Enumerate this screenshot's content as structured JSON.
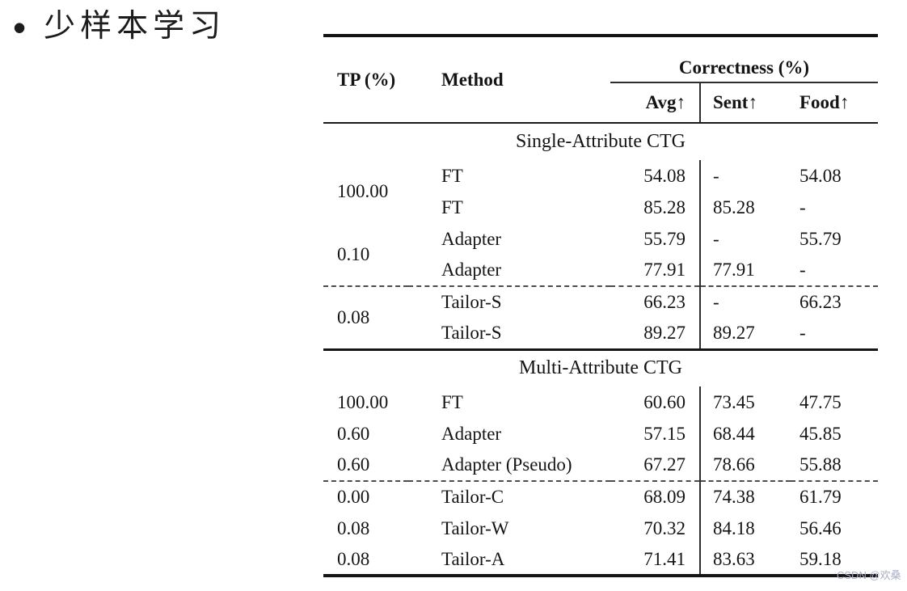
{
  "page": {
    "bullet": "•",
    "title": "少样本学习",
    "watermark": "CSDN @欢桑"
  },
  "table": {
    "header": {
      "tp": "TP (%)",
      "method": "Method",
      "correctness": "Correctness (%)",
      "subcols": [
        "Avg↑",
        "Sent↑",
        "Food↑"
      ]
    },
    "sections": [
      {
        "title": "Single-Attribute CTG",
        "rows": [
          {
            "tp": "100.00",
            "method": "FT",
            "avg": "54.08",
            "sent": "-",
            "food": "54.08"
          },
          {
            "tp": "",
            "method": "FT",
            "avg": "85.28",
            "sent": "85.28",
            "food": "-"
          },
          {
            "tp": "0.10",
            "method": "Adapter",
            "avg": "55.79",
            "sent": "-",
            "food": "55.79"
          },
          {
            "tp": "",
            "method": "Adapter",
            "avg": "77.91",
            "sent": "77.91",
            "food": "-"
          },
          {
            "tp": "0.08",
            "method": "Tailor-S",
            "avg": "66.23",
            "sent": "-",
            "food": "66.23"
          },
          {
            "tp": "",
            "method": "Tailor-S",
            "avg": "89.27",
            "sent": "89.27",
            "food": "-"
          }
        ]
      },
      {
        "title": "Multi-Attribute CTG",
        "rows": [
          {
            "tp": "100.00",
            "method": "FT",
            "avg": "60.60",
            "sent": "73.45",
            "food": "47.75"
          },
          {
            "tp": "0.60",
            "method": "Adapter",
            "avg": "57.15",
            "sent": "68.44",
            "food": "45.85"
          },
          {
            "tp": "0.60",
            "method": "Adapter (Pseudo)",
            "avg": "67.27",
            "sent": "78.66",
            "food": "55.88"
          },
          {
            "tp": "0.00",
            "method": "Tailor-C",
            "avg": "68.09",
            "sent": "74.38",
            "food": "61.79"
          },
          {
            "tp": "0.08",
            "method": "Tailor-W",
            "avg": "70.32",
            "sent": "84.18",
            "food": "56.46"
          },
          {
            "tp": "0.08",
            "method": "Tailor-A",
            "avg": "71.41",
            "sent": "83.63",
            "food": "59.18"
          }
        ]
      }
    ]
  }
}
